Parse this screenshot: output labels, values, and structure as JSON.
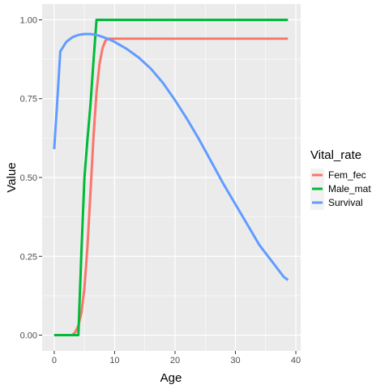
{
  "chart_data": {
    "type": "line",
    "title": "",
    "xlabel": "Age",
    "ylabel": "Value",
    "xlim": [
      -2,
      40.8
    ],
    "ylim": [
      -0.05,
      1.05
    ],
    "x_ticks": [
      0,
      10,
      20,
      30,
      40
    ],
    "x_tick_labels": [
      "0",
      "10",
      "20",
      "30",
      "40"
    ],
    "y_ticks": [
      0,
      0.25,
      0.5,
      0.75,
      1
    ],
    "y_tick_labels": [
      "0.00",
      "0.25",
      "0.50",
      "0.75",
      "1.00"
    ],
    "x_minor_ticks": [
      5,
      15,
      25,
      35
    ],
    "y_minor_ticks": [
      0.125,
      0.375,
      0.625,
      0.875
    ],
    "grid": true,
    "panel_background": "#EBEBEB",
    "grid_color": "#FFFFFF",
    "legend": {
      "title": "Vital_rate",
      "position": "right",
      "entries": [
        "Fem_fec",
        "Male_mat",
        "Survival"
      ]
    },
    "series": [
      {
        "name": "Fem_fec",
        "color": "#F8766D",
        "x": [
          0,
          3,
          3.5,
          4,
          4.5,
          5,
          5.5,
          6,
          6.5,
          7,
          7.5,
          8,
          8.5,
          9,
          9.5,
          10,
          20,
          30,
          38.7
        ],
        "y": [
          0,
          0,
          0.01,
          0.03,
          0.07,
          0.15,
          0.28,
          0.45,
          0.63,
          0.77,
          0.86,
          0.91,
          0.935,
          0.94,
          0.94,
          0.94,
          0.94,
          0.94,
          0.94
        ]
      },
      {
        "name": "Male_mat",
        "color": "#00BA38",
        "x": [
          0,
          4,
          4.5,
          5,
          5.5,
          6,
          6.5,
          7,
          10,
          20,
          30,
          38.7
        ],
        "y": [
          0,
          0,
          0.26,
          0.5,
          0.62,
          0.73,
          0.87,
          1,
          1,
          1,
          1,
          1
        ]
      },
      {
        "name": "Survival",
        "color": "#619CFF",
        "x": [
          0,
          0.5,
          1,
          2,
          3,
          4,
          5,
          6,
          7,
          8,
          9,
          10,
          12,
          14,
          16,
          18,
          20,
          22,
          24,
          26,
          28,
          30,
          32,
          34,
          36,
          38,
          38.7
        ],
        "y": [
          0.59,
          0.74,
          0.9,
          0.93,
          0.945,
          0.952,
          0.955,
          0.955,
          0.952,
          0.946,
          0.939,
          0.93,
          0.908,
          0.88,
          0.845,
          0.8,
          0.745,
          0.685,
          0.62,
          0.55,
          0.48,
          0.415,
          0.35,
          0.285,
          0.235,
          0.185,
          0.175
        ]
      }
    ]
  }
}
